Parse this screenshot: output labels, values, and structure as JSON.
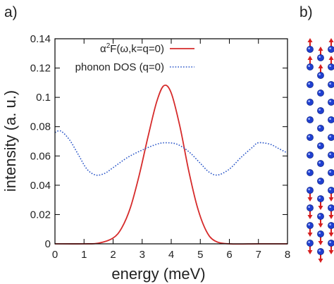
{
  "panel_labels": {
    "a": "a)",
    "b": "b)"
  },
  "legend": {
    "entry1_prefix": "α",
    "entry1_sup": "2",
    "entry1_suffix": "F(ω,k=q=0)",
    "entry2": "phonon DOS (q=0)"
  },
  "colors": {
    "series1": "#d62b2b",
    "series2": "#2a56c8",
    "atom": "#1f3fd0",
    "arrow": "#d61e1e",
    "axis": "#000000"
  },
  "chart_data": {
    "type": "line",
    "xlabel": "energy (meV)",
    "ylabel": "intensity (a. u.)",
    "xlim": [
      0,
      8
    ],
    "ylim": [
      0,
      0.14
    ],
    "xticks": [
      "0",
      "1",
      "2",
      "3",
      "4",
      "5",
      "6",
      "7",
      "8"
    ],
    "yticks": [
      "0",
      "0.02",
      "0.04",
      "0.06",
      "0.08",
      "0.1",
      "0.12",
      "0.14"
    ],
    "legend_position": "top-right",
    "series": [
      {
        "name": "α2F(ω,k=q=0)",
        "style": "solid",
        "x": [
          0,
          1.0,
          1.5,
          2.0,
          2.3,
          2.6,
          2.9,
          3.2,
          3.5,
          3.75,
          4.0,
          4.3,
          4.6,
          4.9,
          5.2,
          5.5,
          6.0,
          7.0,
          8.0
        ],
        "y": [
          0,
          0,
          0.0005,
          0.004,
          0.011,
          0.025,
          0.047,
          0.073,
          0.097,
          0.108,
          0.103,
          0.08,
          0.05,
          0.025,
          0.009,
          0.002,
          0,
          0,
          0
        ]
      },
      {
        "name": "phonon DOS (q=0)",
        "style": "dotted",
        "x": [
          0,
          0.2,
          0.5,
          0.8,
          1.1,
          1.4,
          1.7,
          2.0,
          2.5,
          3.0,
          3.5,
          3.8,
          4.2,
          4.6,
          5.0,
          5.3,
          5.6,
          6.0,
          6.4,
          6.8,
          7.0,
          7.4,
          7.7,
          8.0
        ],
        "y": [
          0.076,
          0.077,
          0.071,
          0.061,
          0.051,
          0.047,
          0.048,
          0.052,
          0.059,
          0.064,
          0.068,
          0.069,
          0.068,
          0.063,
          0.055,
          0.049,
          0.047,
          0.051,
          0.059,
          0.066,
          0.069,
          0.068,
          0.065,
          0.062
        ]
      }
    ]
  },
  "structure": {
    "columns": 3,
    "rows": 12,
    "arrow_rows": [
      0,
      1,
      8,
      9,
      10,
      11
    ]
  }
}
